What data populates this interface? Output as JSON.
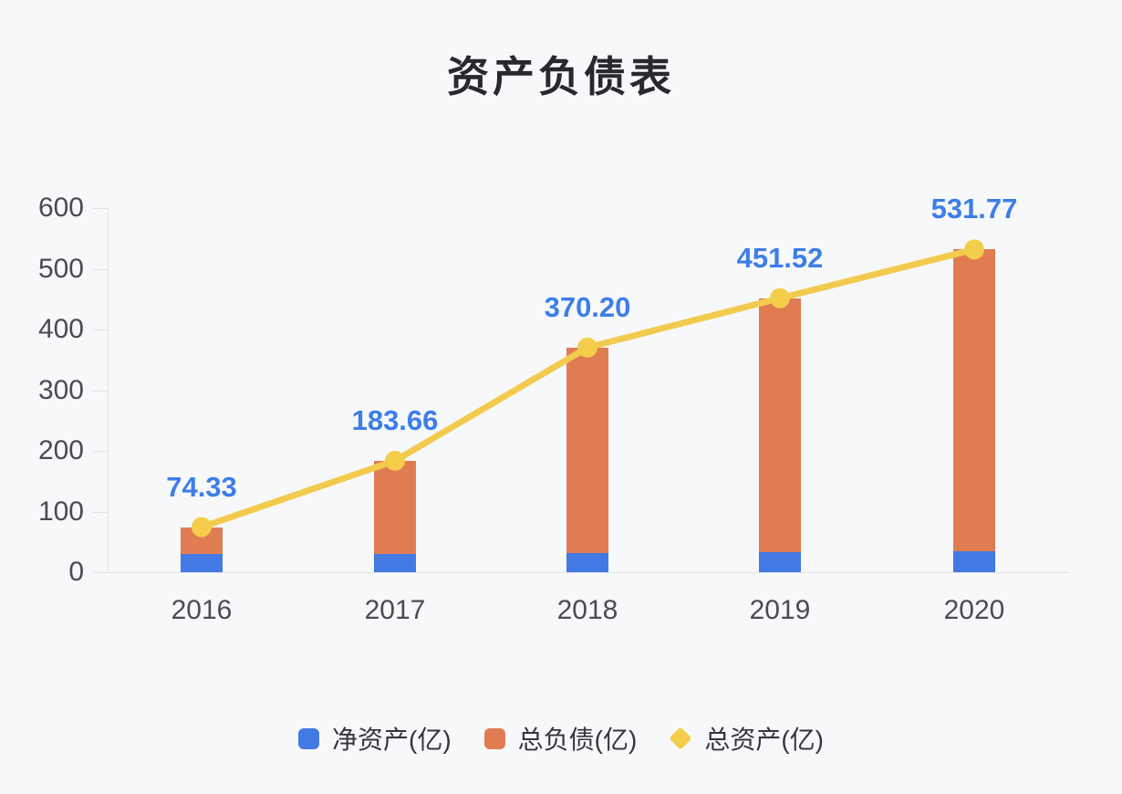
{
  "chart": {
    "title": "资产负债表"
  },
  "chart_data": {
    "type": "bar",
    "subtype": "stacked-bar-with-line-overlay",
    "title": "资产负债表",
    "categories": [
      "2016",
      "2017",
      "2018",
      "2019",
      "2020"
    ],
    "series": [
      {
        "name": "净资产(亿)",
        "type": "bar",
        "stack": true,
        "color": "#4379e2",
        "values": [
          30,
          30,
          31,
          33,
          34
        ],
        "estimated": true
      },
      {
        "name": "总负债(亿)",
        "type": "bar",
        "stack": true,
        "color": "#e07c52",
        "values": [
          44.33,
          153.66,
          339.2,
          418.52,
          497.77
        ],
        "estimated": true
      },
      {
        "name": "总资产(亿)",
        "type": "line",
        "color": "#f2cb4e",
        "values": [
          74.33,
          183.66,
          370.2,
          451.52,
          531.77
        ],
        "data_labels": [
          "74.33",
          "183.66",
          "370.20",
          "451.52",
          "531.77"
        ]
      }
    ],
    "yticks": [
      0,
      100,
      200,
      300,
      400,
      500,
      600
    ],
    "ylim": [
      0,
      600
    ],
    "xlabel": "",
    "ylabel": "",
    "grid": false,
    "legend_position": "bottom",
    "colors": {
      "net_assets_bar": "#4379e2",
      "liabilities_bar": "#e07c52",
      "total_assets_line": "#f2cb4e",
      "line_marker": "#f4cd4a",
      "data_label": "#3d7ee8",
      "axis_line": "#e3e3e6",
      "axis_text": "#4b4b50",
      "title_text": "#28282d",
      "legend_text": "#35353a",
      "background": "#f7f8fa"
    }
  }
}
